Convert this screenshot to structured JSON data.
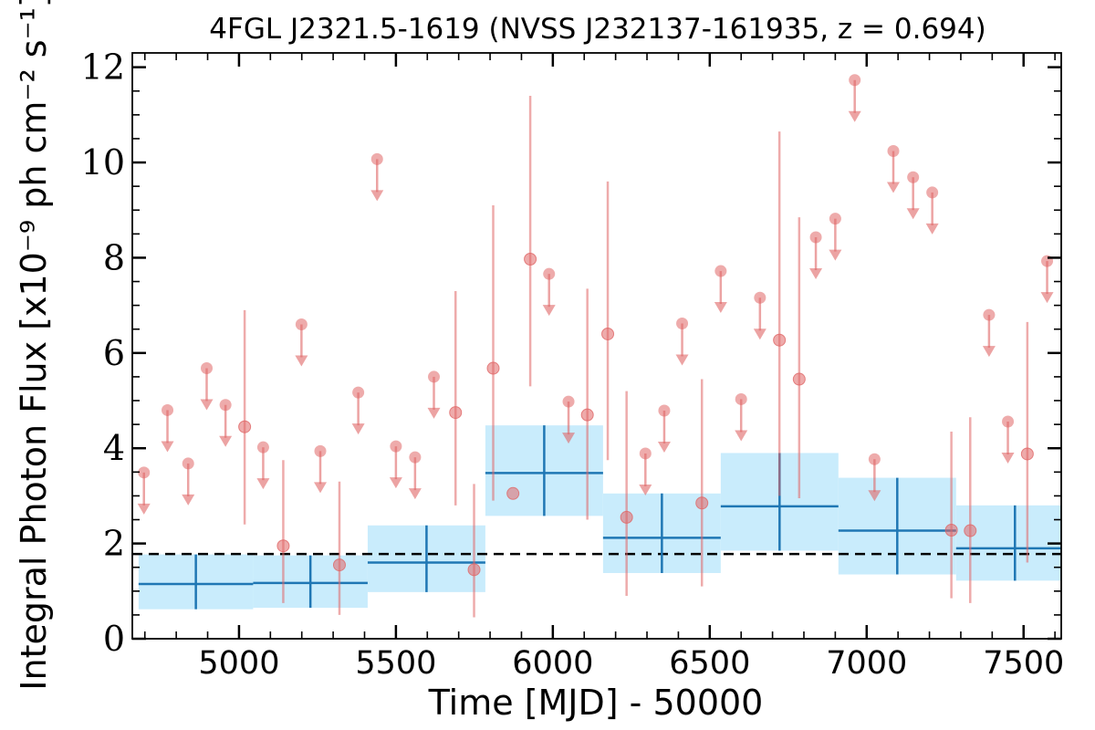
{
  "chart_data": {
    "type": "scatter",
    "title": "4FGL J2321.5-1619 (NVSS J232137-161935, z = 0.694)",
    "xlabel": "Time [MJD] - 50000",
    "ylabel": "Integral Photon Flux [x10⁻⁹ ph cm⁻² s⁻¹]",
    "xlim": [
      4660,
      7620
    ],
    "ylim": [
      0,
      12.3
    ],
    "x_ticks": [
      5000,
      5500,
      6000,
      6500,
      7000,
      7500
    ],
    "y_ticks": [
      0,
      2,
      4,
      6,
      8,
      10,
      12
    ],
    "grid": false,
    "mean_flux_line": 1.78,
    "colors": {
      "monthly": "#e06666",
      "yearly_line": "#1f77b4",
      "yearly_band": "#c9ecfc",
      "mean_line": "#000000"
    },
    "monthly_detections": [
      {
        "mjd": 5018,
        "flux": 4.45,
        "lo": 2.4,
        "hi": 6.9
      },
      {
        "mjd": 5141,
        "flux": 1.95,
        "lo": 0.75,
        "hi": 3.75
      },
      {
        "mjd": 5320,
        "flux": 1.55,
        "lo": 0.5,
        "hi": 3.3
      },
      {
        "mjd": 5690,
        "flux": 4.75,
        "lo": 2.8,
        "hi": 7.3
      },
      {
        "mjd": 5749,
        "flux": 1.45,
        "lo": 0.45,
        "hi": 3.25
      },
      {
        "mjd": 5810,
        "flux": 5.68,
        "lo": 2.9,
        "hi": 9.1
      },
      {
        "mjd": 5873,
        "flux": 3.05,
        "lo": null,
        "hi": null
      },
      {
        "mjd": 5928,
        "flux": 7.97,
        "lo": 5.3,
        "hi": 11.4
      },
      {
        "mjd": 6110,
        "flux": 4.7,
        "lo": 2.5,
        "hi": 7.35
      },
      {
        "mjd": 6175,
        "flux": 6.4,
        "lo": 3.75,
        "hi": 9.6
      },
      {
        "mjd": 6235,
        "flux": 2.55,
        "lo": 0.9,
        "hi": 5.2
      },
      {
        "mjd": 6475,
        "flux": 2.85,
        "lo": 1.1,
        "hi": 5.45
      },
      {
        "mjd": 6722,
        "flux": 6.27,
        "lo": 3.0,
        "hi": 10.65
      },
      {
        "mjd": 6785,
        "flux": 5.45,
        "lo": 2.95,
        "hi": 8.85
      },
      {
        "mjd": 7270,
        "flux": 2.28,
        "lo": 0.85,
        "hi": 4.35
      },
      {
        "mjd": 7330,
        "flux": 2.27,
        "lo": 0.75,
        "hi": 4.65
      },
      {
        "mjd": 7512,
        "flux": 3.88,
        "lo": 1.6,
        "hi": 6.65
      }
    ],
    "monthly_upper_limits": [
      {
        "mjd": 4697,
        "flux": 3.49
      },
      {
        "mjd": 4772,
        "flux": 4.8
      },
      {
        "mjd": 4838,
        "flux": 3.68
      },
      {
        "mjd": 4897,
        "flux": 5.68
      },
      {
        "mjd": 4957,
        "flux": 4.91
      },
      {
        "mjd": 5077,
        "flux": 4.02
      },
      {
        "mjd": 5199,
        "flux": 6.6
      },
      {
        "mjd": 5259,
        "flux": 3.94
      },
      {
        "mjd": 5380,
        "flux": 5.17
      },
      {
        "mjd": 5440,
        "flux": 10.07
      },
      {
        "mjd": 5500,
        "flux": 4.04
      },
      {
        "mjd": 5561,
        "flux": 3.81
      },
      {
        "mjd": 5621,
        "flux": 5.5
      },
      {
        "mjd": 5988,
        "flux": 7.66
      },
      {
        "mjd": 6050,
        "flux": 4.98
      },
      {
        "mjd": 6295,
        "flux": 3.89
      },
      {
        "mjd": 6355,
        "flux": 4.79
      },
      {
        "mjd": 6412,
        "flux": 6.62
      },
      {
        "mjd": 6535,
        "flux": 7.72
      },
      {
        "mjd": 6600,
        "flux": 5.03
      },
      {
        "mjd": 6660,
        "flux": 7.16
      },
      {
        "mjd": 6838,
        "flux": 8.43
      },
      {
        "mjd": 6900,
        "flux": 8.82
      },
      {
        "mjd": 6962,
        "flux": 11.73
      },
      {
        "mjd": 7025,
        "flux": 3.77
      },
      {
        "mjd": 7085,
        "flux": 10.24
      },
      {
        "mjd": 7148,
        "flux": 9.69
      },
      {
        "mjd": 7209,
        "flux": 9.37
      },
      {
        "mjd": 7390,
        "flux": 6.8
      },
      {
        "mjd": 7450,
        "flux": 4.56
      },
      {
        "mjd": 7575,
        "flux": 7.93
      }
    ],
    "yearly_bins": [
      {
        "x0": 4680,
        "x1": 5045,
        "flux": 1.15,
        "lo": 0.62,
        "hi": 1.77
      },
      {
        "x0": 5045,
        "x1": 5410,
        "flux": 1.17,
        "lo": 0.65,
        "hi": 1.75
      },
      {
        "x0": 5410,
        "x1": 5785,
        "flux": 1.6,
        "lo": 0.98,
        "hi": 2.38
      },
      {
        "x0": 5785,
        "x1": 6160,
        "flux": 3.48,
        "lo": 2.58,
        "hi": 4.48
      },
      {
        "x0": 6160,
        "x1": 6535,
        "flux": 2.12,
        "lo": 1.38,
        "hi": 3.05
      },
      {
        "x0": 6535,
        "x1": 6910,
        "flux": 2.78,
        "lo": 1.85,
        "hi": 3.9
      },
      {
        "x0": 6910,
        "x1": 7285,
        "flux": 2.27,
        "lo": 1.35,
        "hi": 3.38
      },
      {
        "x0": 7285,
        "x1": 7660,
        "flux": 1.9,
        "lo": 1.22,
        "hi": 2.8
      }
    ]
  }
}
